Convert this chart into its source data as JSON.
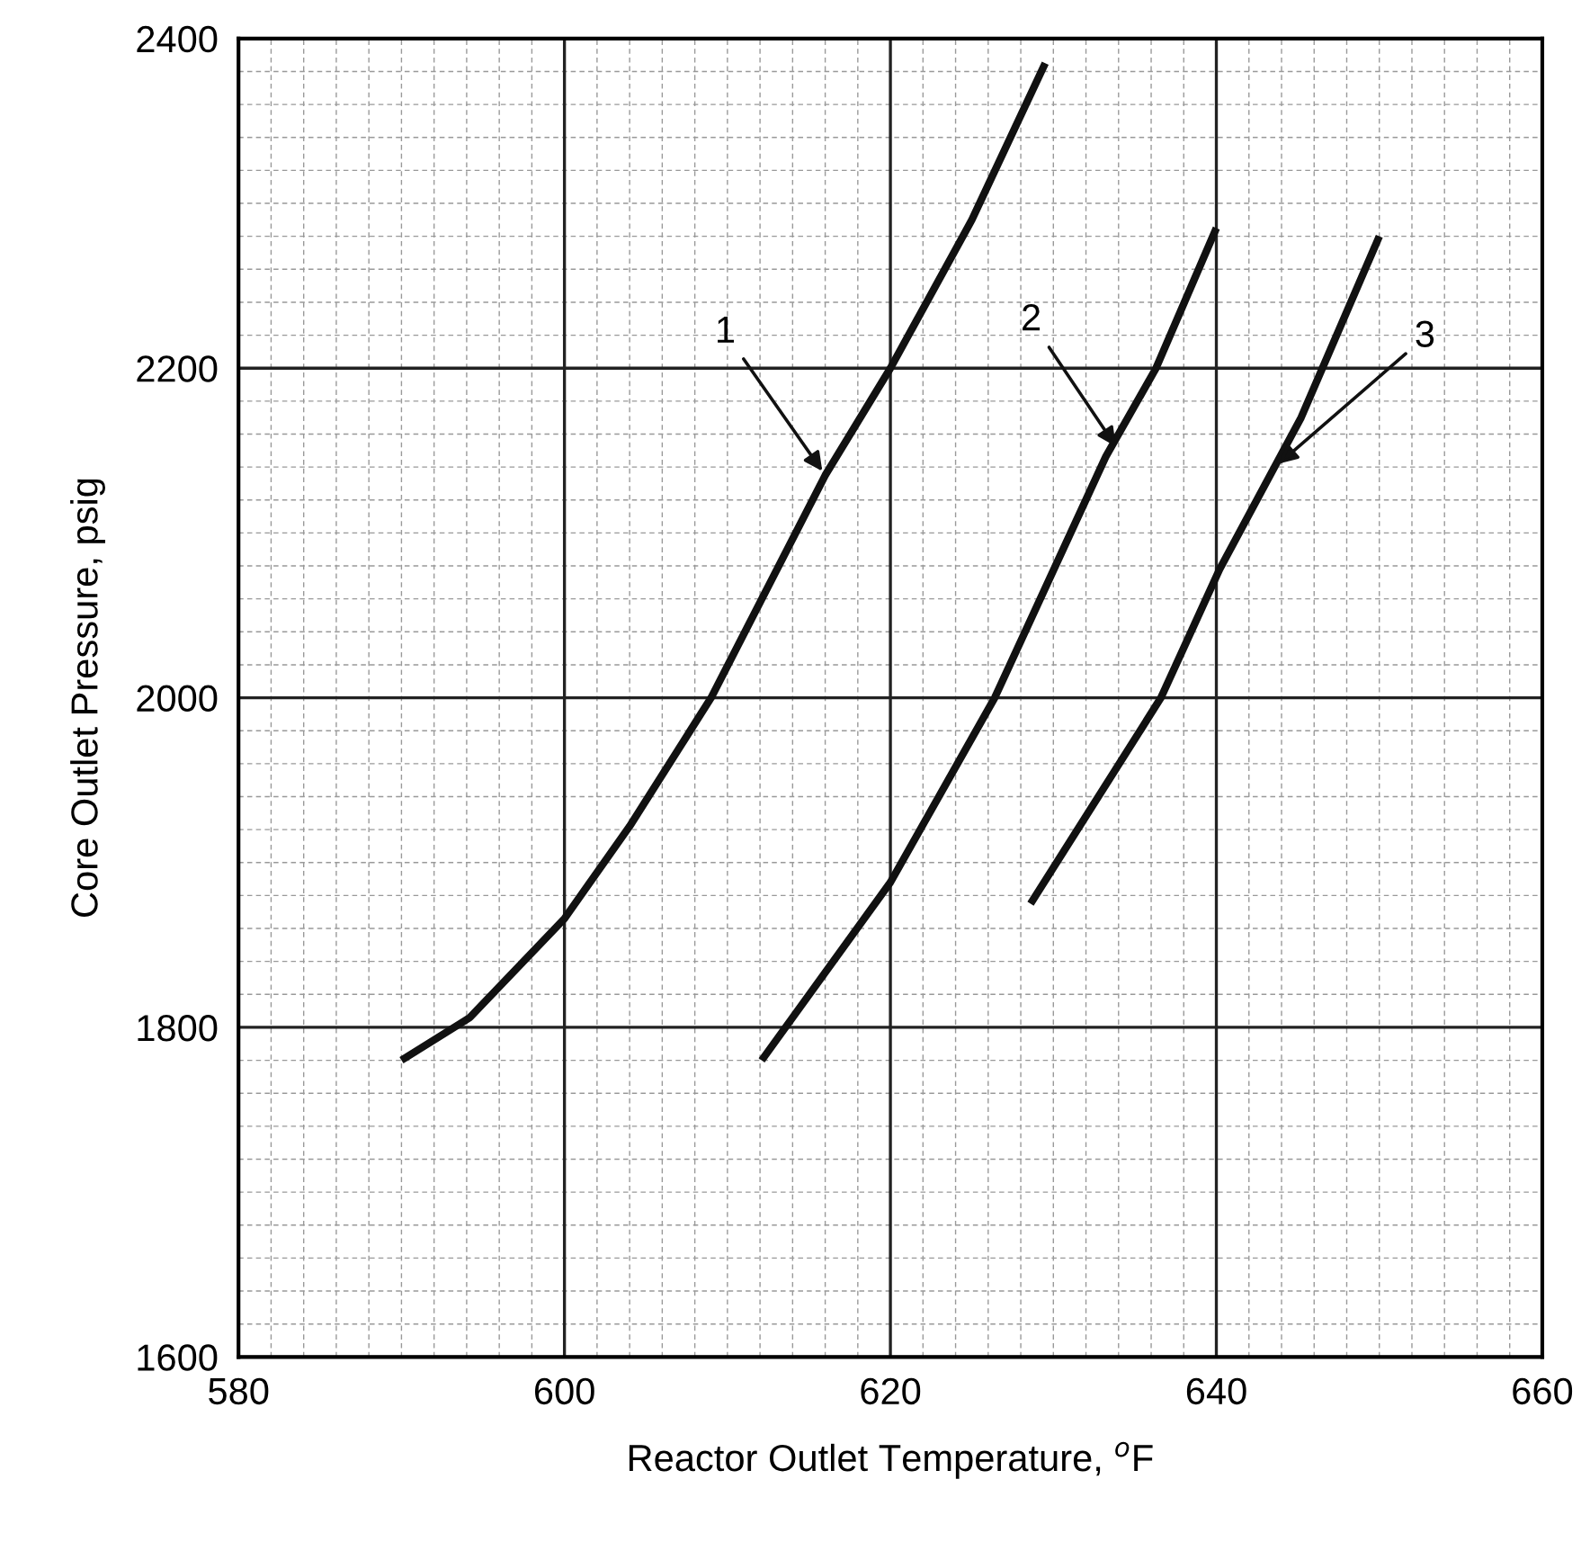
{
  "chart_data": {
    "type": "line",
    "xlabel": "Reactor Outlet Temperature, $^{o}$F",
    "ylabel": "Core Outlet Pressure, psig",
    "xlim": [
      580,
      660
    ],
    "xticks": [
      580,
      600,
      620,
      640,
      660
    ],
    "ylim": [
      1600,
      2400
    ],
    "yticks": [
      1600,
      1800,
      2000,
      2200,
      2400
    ],
    "grid": true,
    "legend": false,
    "marker": "none",
    "line_style": "solid",
    "series": [
      {
        "color": "#111111",
        "x": [
          590,
          594.2,
          600,
          604,
          609,
          616,
          620,
          625,
          629.5
        ],
        "values": [
          1780,
          1806,
          1866,
          1922,
          2000,
          2135,
          2200,
          2290,
          2385
        ]
      },
      {
        "color": "#111111",
        "x": [
          612.1,
          620,
          626.4,
          633.2,
          636.3,
          640
        ],
        "values": [
          1780,
          1888,
          2000,
          2146,
          2200,
          2285
        ]
      },
      {
        "color": "#111111",
        "x": [
          628.6,
          636.6,
          640.2,
          645.2,
          650
        ],
        "values": [
          1875,
          2000,
          2078,
          2170,
          2280
        ]
      }
    ],
    "annotations": [
      {
        "text": "1",
        "x": 616,
        "y": 2135
      },
      {
        "text": "2",
        "x": 634,
        "y": 2150
      },
      {
        "text": "3",
        "x": 643.6,
        "y": 2140
      }
    ]
  }
}
